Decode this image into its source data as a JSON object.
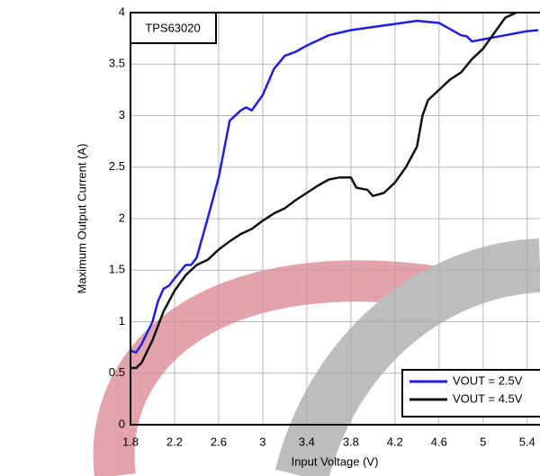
{
  "chart_data": {
    "type": "line",
    "chart_title": "TPS63020",
    "x_label": "Input Voltage (V)",
    "y_label": "Maximum Output Current (A)",
    "xlim": [
      1.8,
      5.5
    ],
    "ylim": [
      0,
      4
    ],
    "xticks": [
      1.8,
      2.2,
      2.6,
      3,
      3.4,
      3.8,
      4.2,
      4.6,
      5,
      5.4
    ],
    "yticks": [
      0,
      0.5,
      1,
      1.5,
      2,
      2.5,
      3,
      3.5,
      4
    ],
    "grid": true,
    "legend": "lower right",
    "series": [
      {
        "name": "VOUT = 2.5V",
        "color": "#1f1fe0",
        "x": [
          1.8,
          1.85,
          1.9,
          2.0,
          2.05,
          2.1,
          2.15,
          2.2,
          2.3,
          2.35,
          2.4,
          2.5,
          2.6,
          2.7,
          2.8,
          2.85,
          2.9,
          3.0,
          3.1,
          3.2,
          3.3,
          3.4,
          3.6,
          3.8,
          4.0,
          4.2,
          4.4,
          4.6,
          4.7,
          4.8,
          4.85,
          4.9,
          5.0,
          5.2,
          5.4,
          5.5
        ],
        "values": [
          0.72,
          0.7,
          0.78,
          1.0,
          1.2,
          1.32,
          1.35,
          1.42,
          1.55,
          1.55,
          1.62,
          2.0,
          2.4,
          2.95,
          3.05,
          3.08,
          3.05,
          3.2,
          3.45,
          3.58,
          3.62,
          3.68,
          3.78,
          3.83,
          3.86,
          3.89,
          3.92,
          3.9,
          3.84,
          3.78,
          3.77,
          3.72,
          3.74,
          3.78,
          3.82,
          3.83
        ]
      },
      {
        "name": "VOUT = 4.5V",
        "color": "#111111",
        "x": [
          1.8,
          1.85,
          1.9,
          2.0,
          2.1,
          2.2,
          2.3,
          2.35,
          2.4,
          2.5,
          2.6,
          2.7,
          2.8,
          2.9,
          3.0,
          3.1,
          3.2,
          3.3,
          3.4,
          3.5,
          3.6,
          3.7,
          3.8,
          3.85,
          3.95,
          4.0,
          4.1,
          4.2,
          4.3,
          4.4,
          4.45,
          4.5,
          4.6,
          4.7,
          4.8,
          4.9,
          5.0,
          5.1,
          5.2,
          5.3
        ],
        "values": [
          0.55,
          0.55,
          0.6,
          0.82,
          1.1,
          1.3,
          1.45,
          1.5,
          1.55,
          1.6,
          1.7,
          1.78,
          1.85,
          1.9,
          1.98,
          2.05,
          2.1,
          2.18,
          2.25,
          2.32,
          2.38,
          2.4,
          2.4,
          2.3,
          2.28,
          2.22,
          2.25,
          2.35,
          2.5,
          2.7,
          3.0,
          3.15,
          3.25,
          3.35,
          3.42,
          3.55,
          3.65,
          3.8,
          3.95,
          4.0
        ]
      }
    ]
  }
}
